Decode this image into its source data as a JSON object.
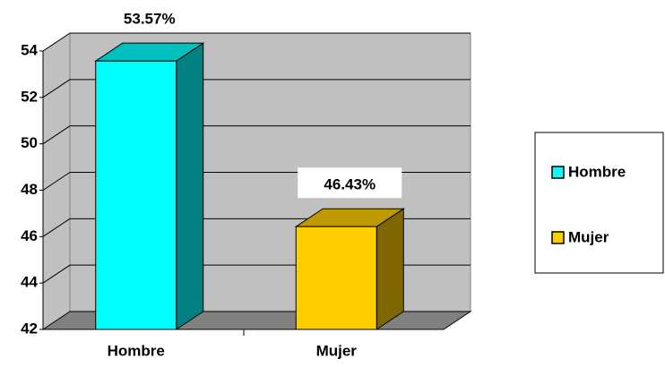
{
  "chart_data": {
    "type": "bar3d",
    "categories": [
      "Hombre",
      "Mujer"
    ],
    "series": [
      {
        "name": "Hombre",
        "color": "#00ffff"
      },
      {
        "name": "Mujer",
        "color": "#ffcc00"
      }
    ],
    "values": [
      53.57,
      46.43
    ],
    "value_labels": [
      "53.57%",
      "46.43%"
    ],
    "ylim": [
      42,
      54
    ],
    "yticks": [
      42,
      44,
      46,
      48,
      50,
      52,
      54
    ],
    "grid": true,
    "legend": "right"
  }
}
